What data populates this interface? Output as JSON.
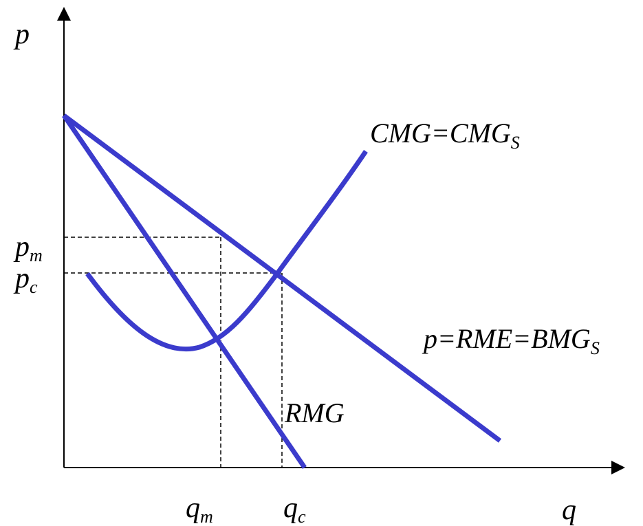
{
  "axes": {
    "y_label": "p",
    "x_label": "q"
  },
  "price_levels": {
    "pm": {
      "base": "p",
      "sub": "m"
    },
    "pc": {
      "base": "p",
      "sub": "c"
    }
  },
  "quantity_levels": {
    "qm": {
      "base": "q",
      "sub": "m"
    },
    "qc": {
      "base": "q",
      "sub": "c"
    }
  },
  "curves": {
    "cost": {
      "base": "CMG=CMG",
      "sub": "S"
    },
    "demand": {
      "base": "p=RME=BMG",
      "sub": "S"
    },
    "marginal_revenue": {
      "label": "RMG"
    }
  },
  "colors": {
    "curve": "#3b3bcc",
    "axis": "#000000",
    "guide": "#000000"
  }
}
